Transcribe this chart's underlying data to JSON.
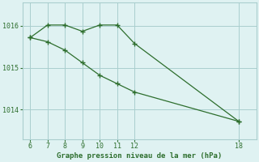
{
  "line1_x": [
    6,
    7,
    8,
    9,
    10,
    11,
    12,
    18
  ],
  "line1_y": [
    1015.72,
    1016.02,
    1016.02,
    1015.87,
    1016.02,
    1016.02,
    1015.58,
    1013.72
  ],
  "line2_x": [
    6,
    7,
    8,
    9,
    10,
    11,
    12,
    18
  ],
  "line2_y": [
    1015.72,
    1015.62,
    1015.42,
    1015.12,
    1014.82,
    1014.62,
    1014.42,
    1013.72
  ],
  "line_color": "#2d6e2d",
  "bg_color": "#dff2f2",
  "grid_color": "#aacece",
  "xlabel": "Graphe pression niveau de la mer (hPa)",
  "xticks": [
    6,
    7,
    8,
    9,
    10,
    11,
    12,
    18
  ],
  "yticks": [
    1014,
    1015,
    1016
  ],
  "ylim": [
    1013.3,
    1016.55
  ],
  "xlim": [
    5.55,
    19.0
  ]
}
